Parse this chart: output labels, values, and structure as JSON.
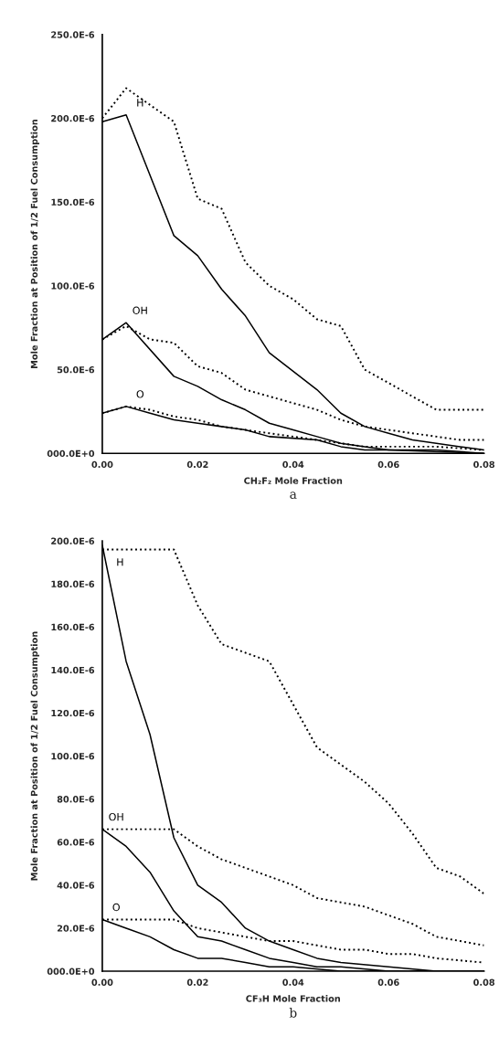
{
  "chart_data": [
    {
      "type": "line",
      "xlabel": "CH₂F₂ Mole Fraction",
      "ylabel": "Mole Fraction at Position of 1/2 Fuel Consumption",
      "xlim": [
        0,
        0.08
      ],
      "ylim": [
        0,
        0.00025
      ],
      "xticks": [
        {
          "value": 0,
          "label": "0.00"
        },
        {
          "value": 0.02,
          "label": "0.02"
        },
        {
          "value": 0.04,
          "label": "0.04"
        },
        {
          "value": 0.06,
          "label": "0.06"
        },
        {
          "value": 0.08,
          "label": "0.08"
        }
      ],
      "yticks": [
        {
          "value": 0,
          "label": "000.0E+0"
        },
        {
          "value": 5e-05,
          "label": "50.0E-6"
        },
        {
          "value": 0.0001,
          "label": "100.0E-6"
        },
        {
          "value": 0.00015,
          "label": "150.0E-6"
        },
        {
          "value": 0.0002,
          "label": "200.0E-6"
        },
        {
          "value": 0.00025,
          "label": "250.0E-6"
        }
      ],
      "grid": false,
      "series": [
        {
          "name": "H",
          "color": "#000000",
          "line_style": "solid",
          "x": [
            0,
            0.005,
            0.015,
            0.02,
            0.025,
            0.03,
            0.035,
            0.045,
            0.05,
            0.055,
            0.06,
            0.065,
            0.07,
            0.075,
            0.08
          ],
          "values": [
            0.000198,
            0.000202,
            0.00013,
            0.000118,
            9.8e-05,
            8.2e-05,
            6e-05,
            3.8e-05,
            2.4e-05,
            1.6e-05,
            1.2e-05,
            8e-06,
            6e-06,
            4e-06,
            2e-06
          ]
        },
        {
          "color": "#000000",
          "line_style": "dotted",
          "x": [
            0,
            0.005,
            0.015,
            0.02,
            0.025,
            0.03,
            0.035,
            0.04,
            0.045,
            0.05,
            0.055,
            0.06,
            0.065,
            0.07,
            0.08
          ],
          "values": [
            0.0002,
            0.000218,
            0.000198,
            0.000152,
            0.000146,
            0.000114,
            0.0001,
            9.2e-05,
            8e-05,
            7.6e-05,
            5e-05,
            4.2e-05,
            3.4e-05,
            2.6e-05,
            2.6e-05
          ]
        },
        {
          "name": "OH",
          "color": "#000000",
          "line_style": "solid",
          "x": [
            0,
            0.005,
            0.015,
            0.02,
            0.025,
            0.03,
            0.035,
            0.04,
            0.045,
            0.05,
            0.055,
            0.06,
            0.07,
            0.08
          ],
          "values": [
            6.8e-05,
            7.8e-05,
            4.6e-05,
            4e-05,
            3.2e-05,
            2.6e-05,
            1.8e-05,
            1.4e-05,
            1e-05,
            6e-06,
            4e-06,
            2e-06,
            2e-06,
            0
          ]
        },
        {
          "color": "#000000",
          "line_style": "dotted",
          "x": [
            0,
            0.005,
            0.01,
            0.015,
            0.02,
            0.025,
            0.03,
            0.035,
            0.04,
            0.045,
            0.05,
            0.055,
            0.06,
            0.065,
            0.07,
            0.075,
            0.08
          ],
          "values": [
            6.8e-05,
            7.6e-05,
            6.8e-05,
            6.6e-05,
            5.2e-05,
            4.8e-05,
            3.8e-05,
            3.4e-05,
            3e-05,
            2.6e-05,
            2e-05,
            1.6e-05,
            1.4e-05,
            1.2e-05,
            1e-05,
            8e-06,
            8e-06
          ]
        },
        {
          "name": "O",
          "color": "#000000",
          "line_style": "solid",
          "x": [
            0,
            0.005,
            0.01,
            0.015,
            0.02,
            0.025,
            0.03,
            0.035,
            0.045,
            0.05,
            0.055,
            0.06,
            0.08
          ],
          "values": [
            2.4e-05,
            2.8e-05,
            2.4e-05,
            2e-05,
            1.8e-05,
            1.6e-05,
            1.4e-05,
            1e-05,
            8e-06,
            4e-06,
            2e-06,
            2e-06,
            0
          ]
        },
        {
          "color": "#000000",
          "line_style": "dotted",
          "x": [
            0,
            0.005,
            0.01,
            0.015,
            0.02,
            0.025,
            0.03,
            0.035,
            0.04,
            0.045,
            0.05,
            0.055,
            0.06,
            0.065,
            0.07,
            0.08
          ],
          "values": [
            2.4e-05,
            2.8e-05,
            2.6e-05,
            2.2e-05,
            2e-05,
            1.6e-05,
            1.4e-05,
            1.2e-05,
            1e-05,
            8e-06,
            6e-06,
            4e-06,
            4e-06,
            4e-06,
            4e-06,
            2e-06
          ]
        }
      ],
      "annotations": [
        "a"
      ]
    },
    {
      "type": "line",
      "xlabel": "CF₃H Mole Fraction",
      "ylabel": "Mole Fraction at Position of 1/2 Fuel Consumption",
      "xlim": [
        0,
        0.08
      ],
      "ylim": [
        0,
        0.0002
      ],
      "xticks": [
        {
          "value": 0,
          "label": "0.00"
        },
        {
          "value": 0.02,
          "label": "0.02"
        },
        {
          "value": 0.04,
          "label": "0.04"
        },
        {
          "value": 0.06,
          "label": "0.06"
        },
        {
          "value": 0.08,
          "label": "0.08"
        }
      ],
      "yticks": [
        {
          "value": 0,
          "label": "000.0E+0"
        },
        {
          "value": 2e-05,
          "label": "20.0E-6"
        },
        {
          "value": 4e-05,
          "label": "40.0E-6"
        },
        {
          "value": 6e-05,
          "label": "60.0E-6"
        },
        {
          "value": 8e-05,
          "label": "80.0E-6"
        },
        {
          "value": 0.0001,
          "label": "100.0E-6"
        },
        {
          "value": 0.00012,
          "label": "120.0E-6"
        },
        {
          "value": 0.00014,
          "label": "140.0E-6"
        },
        {
          "value": 0.00016,
          "label": "160.0E-6"
        },
        {
          "value": 0.00018,
          "label": "180.0E-6"
        },
        {
          "value": 0.0002,
          "label": "200.0E-6"
        }
      ],
      "grid": false,
      "series": [
        {
          "name": "H",
          "color": "#000000",
          "line_style": "solid",
          "x": [
            0,
            0.005,
            0.01,
            0.015,
            0.02,
            0.025,
            0.03,
            0.035,
            0.04,
            0.045,
            0.05,
            0.06,
            0.07,
            0.08
          ],
          "values": [
            0.000198,
            0.000144,
            0.00011,
            6.2e-05,
            4e-05,
            3.2e-05,
            2e-05,
            1.4e-05,
            1e-05,
            6e-06,
            4e-06,
            2e-06,
            0,
            0
          ]
        },
        {
          "color": "#000000",
          "line_style": "dotted",
          "x": [
            0,
            0.015,
            0.02,
            0.025,
            0.03,
            0.035,
            0.04,
            0.045,
            0.05,
            0.055,
            0.06,
            0.065,
            0.07,
            0.075,
            0.08
          ],
          "values": [
            0.000196,
            0.000196,
            0.00017,
            0.000152,
            0.000148,
            0.000144,
            0.000124,
            0.000104,
            9.6e-05,
            8.8e-05,
            7.8e-05,
            6.4e-05,
            4.8e-05,
            4.4e-05,
            3.6e-05
          ]
        },
        {
          "name": "OH",
          "color": "#000000",
          "line_style": "solid",
          "x": [
            0,
            0.005,
            0.01,
            0.015,
            0.02,
            0.025,
            0.03,
            0.035,
            0.04,
            0.045,
            0.05,
            0.06,
            0.08
          ],
          "values": [
            6.6e-05,
            5.8e-05,
            4.6e-05,
            2.8e-05,
            1.6e-05,
            1.4e-05,
            1e-05,
            6e-06,
            4e-06,
            2e-06,
            2e-06,
            0,
            0
          ]
        },
        {
          "color": "#000000",
          "line_style": "dotted",
          "x": [
            0,
            0.015,
            0.02,
            0.025,
            0.03,
            0.035,
            0.04,
            0.045,
            0.05,
            0.055,
            0.06,
            0.065,
            0.07,
            0.075,
            0.08
          ],
          "values": [
            6.6e-05,
            6.6e-05,
            5.8e-05,
            5.2e-05,
            4.8e-05,
            4.4e-05,
            4e-05,
            3.4e-05,
            3.2e-05,
            3e-05,
            2.6e-05,
            2.2e-05,
            1.6e-05,
            1.4e-05,
            1.2e-05
          ]
        },
        {
          "name": "O",
          "color": "#000000",
          "line_style": "solid",
          "x": [
            0,
            0.005,
            0.01,
            0.015,
            0.02,
            0.025,
            0.03,
            0.035,
            0.04,
            0.05,
            0.08
          ],
          "values": [
            2.4e-05,
            2e-05,
            1.6e-05,
            1e-05,
            6e-06,
            6e-06,
            4e-06,
            2e-06,
            2e-06,
            0,
            0
          ]
        },
        {
          "color": "#000000",
          "line_style": "dotted",
          "x": [
            0,
            0.015,
            0.02,
            0.025,
            0.03,
            0.035,
            0.04,
            0.045,
            0.05,
            0.055,
            0.06,
            0.065,
            0.07,
            0.08
          ],
          "values": [
            2.4e-05,
            2.4e-05,
            2e-05,
            1.8e-05,
            1.6e-05,
            1.4e-05,
            1.4e-05,
            1.2e-05,
            1e-05,
            1e-05,
            8e-06,
            8e-06,
            6e-06,
            4e-06
          ]
        }
      ],
      "annotations": [
        "b"
      ]
    }
  ]
}
